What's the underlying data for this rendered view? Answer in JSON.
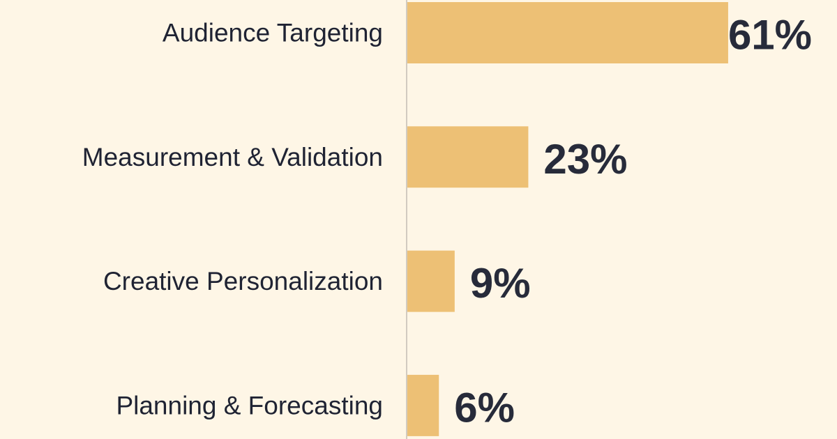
{
  "chart_data": {
    "type": "bar",
    "orientation": "horizontal",
    "categories": [
      "Audience Targeting",
      "Measurement & Validation",
      "Creative Personalization",
      "Planning & Forecasting"
    ],
    "values": [
      61,
      23,
      9,
      6
    ],
    "data_labels": [
      "61%",
      "23%",
      "9%",
      "6%"
    ],
    "unit": "%",
    "title": "",
    "xlabel": "",
    "ylabel": "",
    "xlim": [
      0,
      80
    ],
    "grid": false,
    "legend": "none",
    "colors": {
      "background": "#fef6e6",
      "bar": "#edc075",
      "axis": "#d2cbc0",
      "category_text": "#1f2333",
      "value_text": "#272b3a"
    }
  }
}
